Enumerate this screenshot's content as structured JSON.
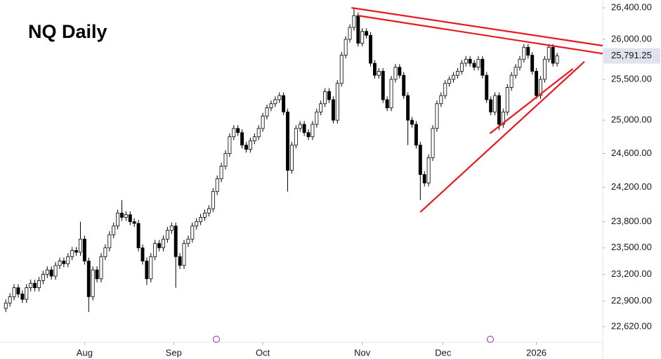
{
  "chart_data": {
    "type": "candlestick",
    "title": "NQ Daily",
    "log_scale": true,
    "ylim": [
      22450,
      26500
    ],
    "xlim": [
      -1.4,
      144
    ],
    "yticks": [
      {
        "value": 26400,
        "label": "26,400.00"
      },
      {
        "value": 26000,
        "label": "26,000.00"
      },
      {
        "value": 25500,
        "label": "25,500.00"
      },
      {
        "value": 25000,
        "label": "25,000.00"
      },
      {
        "value": 24600,
        "label": "24,600.00"
      },
      {
        "value": 24200,
        "label": "24,200.00"
      },
      {
        "value": 23800,
        "label": "23,800.00"
      },
      {
        "value": 23500,
        "label": "23,500.00"
      },
      {
        "value": 23200,
        "label": "23,200.00"
      },
      {
        "value": 22900,
        "label": "22,900.00"
      },
      {
        "value": 22620,
        "label": "22,620.00"
      }
    ],
    "xticks": [
      {
        "value": 19,
        "label": "Aug"
      },
      {
        "value": 40.5,
        "label": "Sep"
      },
      {
        "value": 62,
        "label": "Oct"
      },
      {
        "value": 86,
        "label": "Nov"
      },
      {
        "value": 105.5,
        "label": "Dec"
      },
      {
        "value": 128,
        "label": "2026"
      }
    ],
    "price_label": {
      "value": 25791.25,
      "label": "25,791.25"
    },
    "up_color": "#ffffff",
    "down_color": "#000000",
    "wick_color": "#000000",
    "open": [
      22820,
      22880,
      22950,
      23050,
      22980,
      22920,
      23050,
      23100,
      23050,
      23130,
      23200,
      23250,
      23180,
      23300,
      23350,
      23320,
      23400,
      23470,
      23450,
      23600,
      23350,
      22950,
      23250,
      23150,
      23400,
      23500,
      23650,
      23750,
      23900,
      23850,
      23880,
      23800,
      23780,
      23500,
      23350,
      23150,
      23400,
      23550,
      23500,
      23600,
      23700,
      23750,
      23400,
      23300,
      23550,
      23600,
      23750,
      23800,
      23850,
      23900,
      23950,
      24150,
      24300,
      24450,
      24600,
      24800,
      24900,
      24850,
      24700,
      24650,
      24750,
      24800,
      24900,
      25050,
      25150,
      25200,
      25250,
      25300,
      25100,
      24400,
      24700,
      24900,
      24950,
      24850,
      24800,
      24950,
      25100,
      25200,
      25350,
      25250,
      25000,
      25450,
      25800,
      26000,
      26150,
      26300,
      25950,
      26100,
      26050,
      25700,
      25550,
      25600,
      25250,
      25150,
      25500,
      25650,
      25550,
      25300,
      25000,
      24950,
      24700,
      24350,
      24250,
      24550,
      24900,
      25200,
      25300,
      25450,
      25500,
      25550,
      25600,
      25700,
      25750,
      25700,
      25650,
      25750,
      25550,
      25250,
      25100,
      25300,
      24950,
      25100,
      25400,
      25550,
      25650,
      25750,
      25900,
      25800,
      25600,
      25300,
      25500,
      25750,
      25900,
      25700
    ],
    "high": [
      22920,
      22990,
      23090,
      23090,
      23020,
      23090,
      23140,
      23140,
      23170,
      23240,
      23290,
      23290,
      23340,
      23390,
      23390,
      23440,
      23510,
      23510,
      23800,
      23640,
      23390,
      23290,
      23290,
      23440,
      23540,
      23690,
      23790,
      23940,
      24050,
      23920,
      23920,
      23840,
      23820,
      23540,
      23390,
      23440,
      23590,
      23590,
      23640,
      23740,
      23790,
      23790,
      23440,
      23590,
      23640,
      23790,
      23840,
      23890,
      23940,
      23990,
      24190,
      24340,
      24490,
      24640,
      24840,
      24940,
      24940,
      24890,
      24740,
      24790,
      24840,
      24940,
      25090,
      25190,
      25240,
      25290,
      25340,
      25340,
      25140,
      24740,
      24940,
      24990,
      24990,
      24890,
      24990,
      25140,
      25240,
      25390,
      25390,
      25290,
      25490,
      25840,
      26040,
      26190,
      26400,
      26340,
      26140,
      26140,
      26090,
      25740,
      25640,
      25640,
      25290,
      25540,
      25690,
      25690,
      25590,
      25340,
      25040,
      24990,
      24740,
      24390,
      24590,
      24940,
      25240,
      25340,
      25490,
      25540,
      25590,
      25640,
      25740,
      25790,
      25790,
      25740,
      25790,
      25790,
      25590,
      25290,
      25340,
      25340,
      25140,
      25440,
      25590,
      25690,
      25790,
      25940,
      25940,
      25840,
      25640,
      25540,
      25790,
      25940,
      25940,
      25830
    ],
    "low": [
      22780,
      22840,
      22910,
      22940,
      22880,
      22880,
      23010,
      23010,
      23010,
      23090,
      23160,
      23140,
      23140,
      23260,
      23280,
      23280,
      23360,
      23410,
      23410,
      23310,
      22780,
      22910,
      23110,
      23110,
      23360,
      23460,
      23610,
      23710,
      23810,
      23810,
      23760,
      23740,
      23460,
      23310,
      23080,
      23110,
      23360,
      23460,
      23460,
      23560,
      23660,
      23050,
      23260,
      23260,
      23510,
      23560,
      23710,
      23760,
      23810,
      23860,
      23910,
      24110,
      24260,
      24410,
      24560,
      24760,
      24810,
      24660,
      24610,
      24610,
      24710,
      24760,
      24860,
      25010,
      25110,
      25160,
      25210,
      25060,
      24150,
      24360,
      24660,
      24860,
      24810,
      24760,
      24760,
      24910,
      25060,
      25160,
      25210,
      24960,
      24960,
      25410,
      25760,
      25960,
      26110,
      25910,
      25910,
      26010,
      25660,
      25510,
      25510,
      25210,
      25110,
      25110,
      25460,
      25510,
      25260,
      24700,
      24910,
      24660,
      24050,
      24210,
      24210,
      24510,
      24860,
      25160,
      25260,
      25410,
      25460,
      25510,
      25560,
      25660,
      25660,
      25610,
      25610,
      25510,
      25210,
      25060,
      25060,
      24880,
      24910,
      25060,
      25360,
      25510,
      25610,
      25710,
      25760,
      25560,
      25260,
      25260,
      25460,
      25710,
      25660,
      25660
    ],
    "close": [
      22880,
      22950,
      23050,
      22980,
      22920,
      23050,
      23100,
      23050,
      23130,
      23200,
      23250,
      23180,
      23300,
      23350,
      23320,
      23400,
      23470,
      23450,
      23600,
      23350,
      22950,
      23250,
      23150,
      23400,
      23500,
      23650,
      23750,
      23900,
      23850,
      23880,
      23800,
      23780,
      23500,
      23350,
      23150,
      23400,
      23550,
      23500,
      23600,
      23700,
      23750,
      23400,
      23300,
      23550,
      23600,
      23750,
      23800,
      23850,
      23900,
      23950,
      24150,
      24300,
      24450,
      24600,
      24800,
      24900,
      24850,
      24700,
      24650,
      24750,
      24800,
      24900,
      25050,
      25150,
      25200,
      25250,
      25300,
      25100,
      24400,
      24700,
      24900,
      24950,
      24850,
      24800,
      24950,
      25100,
      25200,
      25350,
      25250,
      25000,
      25450,
      25800,
      26000,
      26150,
      26300,
      25950,
      26100,
      26050,
      25700,
      25550,
      25600,
      25250,
      25150,
      25500,
      25650,
      25550,
      25300,
      25000,
      24950,
      24700,
      24350,
      24250,
      24550,
      24900,
      25200,
      25300,
      25450,
      25500,
      25550,
      25600,
      25700,
      25750,
      25700,
      25650,
      25750,
      25550,
      25250,
      25100,
      25300,
      24950,
      25100,
      25400,
      25550,
      25650,
      25750,
      25900,
      25800,
      25600,
      25300,
      25500,
      25750,
      25900,
      25700,
      25791.25
    ],
    "trendline_color": "#e8191f",
    "trendlines": [
      {
        "x": [
          83.4,
          144
        ],
        "y": [
          26400,
          25920
        ]
      },
      {
        "x": [
          85,
          144
        ],
        "y": [
          26300,
          25820
        ]
      },
      {
        "x": [
          100,
          139.6
        ],
        "y": [
          23910,
          25720
        ]
      },
      {
        "x": [
          116.8,
          136.8
        ],
        "y": [
          24840,
          25630
        ]
      }
    ]
  }
}
